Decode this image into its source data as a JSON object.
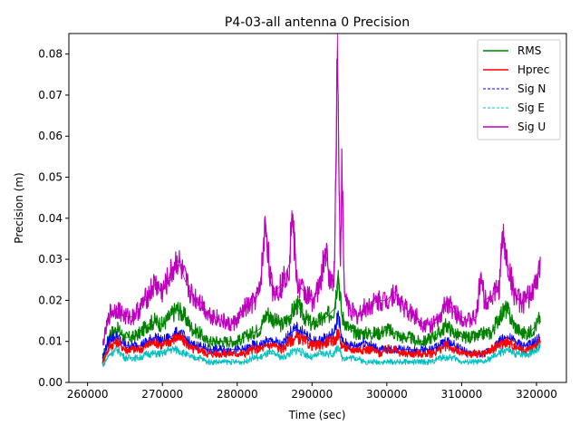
{
  "chart_data": {
    "type": "line",
    "title": "P4-03-all antenna 0 Precision",
    "xlabel": "Time (sec)",
    "ylabel": "Precision (m)",
    "xlim": [
      257500,
      324000
    ],
    "ylim": [
      0,
      0.085
    ],
    "xticks": [
      260000,
      270000,
      280000,
      290000,
      300000,
      310000,
      320000
    ],
    "xtick_labels": [
      "260000",
      "270000",
      "280000",
      "290000",
      "300000",
      "310000",
      "320000"
    ],
    "yticks": [
      0,
      0.01,
      0.02,
      0.03,
      0.04,
      0.05,
      0.06,
      0.07,
      0.08
    ],
    "ytick_labels": [
      "0.00",
      "0.01",
      "0.02",
      "0.03",
      "0.04",
      "0.05",
      "0.06",
      "0.07",
      "0.08"
    ],
    "grid": false,
    "legend_position": "top-right",
    "series": [
      {
        "name": "RMS",
        "color": "#008000",
        "style": "solid",
        "x": [
          262000,
          263000,
          264000,
          265000,
          266000,
          267000,
          268000,
          269000,
          270000,
          271000,
          272000,
          273000,
          274000,
          275000,
          276000,
          277000,
          278000,
          279000,
          280000,
          281000,
          282000,
          283000,
          284000,
          285000,
          286000,
          287000,
          288000,
          289000,
          290000,
          291000,
          292000,
          293000,
          293500,
          294000,
          295000,
          296000,
          297000,
          298000,
          299000,
          300000,
          301000,
          302000,
          303000,
          304000,
          305000,
          306000,
          307000,
          308000,
          309000,
          310000,
          311000,
          312000,
          313000,
          314000,
          315000,
          316000,
          317000,
          318000,
          319000,
          320000,
          320500
        ],
        "y": [
          0.006,
          0.012,
          0.013,
          0.011,
          0.011,
          0.012,
          0.014,
          0.015,
          0.014,
          0.016,
          0.018,
          0.016,
          0.013,
          0.012,
          0.01,
          0.01,
          0.01,
          0.01,
          0.01,
          0.011,
          0.012,
          0.013,
          0.017,
          0.015,
          0.014,
          0.016,
          0.019,
          0.016,
          0.014,
          0.015,
          0.016,
          0.018,
          0.027,
          0.016,
          0.013,
          0.012,
          0.012,
          0.012,
          0.012,
          0.013,
          0.012,
          0.011,
          0.011,
          0.01,
          0.01,
          0.011,
          0.012,
          0.014,
          0.012,
          0.011,
          0.011,
          0.011,
          0.012,
          0.012,
          0.016,
          0.018,
          0.014,
          0.012,
          0.012,
          0.014,
          0.016
        ]
      },
      {
        "name": "Hprec",
        "color": "#ff0000",
        "style": "solid",
        "x": [
          262000,
          263000,
          264000,
          265000,
          266000,
          267000,
          268000,
          269000,
          270000,
          271000,
          272000,
          273000,
          274000,
          275000,
          276000,
          277000,
          278000,
          279000,
          280000,
          281000,
          282000,
          283000,
          284000,
          285000,
          286000,
          287000,
          288000,
          289000,
          290000,
          291000,
          292000,
          293000,
          293500,
          294000,
          295000,
          296000,
          297000,
          298000,
          299000,
          300000,
          301000,
          302000,
          303000,
          304000,
          305000,
          306000,
          307000,
          308000,
          309000,
          310000,
          311000,
          312000,
          313000,
          314000,
          315000,
          316000,
          317000,
          318000,
          319000,
          320000,
          320500
        ],
        "y": [
          0.005,
          0.009,
          0.01,
          0.008,
          0.008,
          0.008,
          0.009,
          0.01,
          0.009,
          0.01,
          0.011,
          0.01,
          0.008,
          0.008,
          0.007,
          0.007,
          0.007,
          0.007,
          0.007,
          0.007,
          0.008,
          0.008,
          0.009,
          0.009,
          0.008,
          0.01,
          0.011,
          0.01,
          0.009,
          0.009,
          0.01,
          0.01,
          0.012,
          0.009,
          0.008,
          0.008,
          0.008,
          0.008,
          0.007,
          0.008,
          0.008,
          0.007,
          0.007,
          0.007,
          0.007,
          0.007,
          0.008,
          0.009,
          0.008,
          0.007,
          0.007,
          0.007,
          0.007,
          0.008,
          0.009,
          0.01,
          0.009,
          0.008,
          0.008,
          0.009,
          0.01
        ]
      },
      {
        "name": "Sig N",
        "color": "#0000ff",
        "style": "dashed",
        "x": [
          262000,
          263000,
          264000,
          265000,
          266000,
          267000,
          268000,
          269000,
          270000,
          271000,
          272000,
          273000,
          274000,
          275000,
          276000,
          277000,
          278000,
          279000,
          280000,
          281000,
          282000,
          283000,
          284000,
          285000,
          286000,
          287000,
          288000,
          289000,
          290000,
          291000,
          292000,
          293000,
          293500,
          294000,
          295000,
          296000,
          297000,
          298000,
          299000,
          300000,
          301000,
          302000,
          303000,
          304000,
          305000,
          306000,
          307000,
          308000,
          309000,
          310000,
          311000,
          312000,
          313000,
          314000,
          315000,
          316000,
          317000,
          318000,
          319000,
          320000,
          320500
        ],
        "y": [
          0.006,
          0.011,
          0.011,
          0.009,
          0.009,
          0.009,
          0.01,
          0.011,
          0.01,
          0.011,
          0.012,
          0.011,
          0.009,
          0.009,
          0.008,
          0.008,
          0.008,
          0.008,
          0.008,
          0.008,
          0.009,
          0.009,
          0.01,
          0.01,
          0.009,
          0.012,
          0.013,
          0.012,
          0.01,
          0.01,
          0.011,
          0.012,
          0.017,
          0.01,
          0.009,
          0.009,
          0.01,
          0.009,
          0.008,
          0.008,
          0.008,
          0.008,
          0.008,
          0.008,
          0.008,
          0.008,
          0.009,
          0.01,
          0.009,
          0.008,
          0.007,
          0.007,
          0.007,
          0.008,
          0.01,
          0.011,
          0.01,
          0.009,
          0.009,
          0.01,
          0.011
        ]
      },
      {
        "name": "Sig E",
        "color": "#00bfbf",
        "style": "dashed",
        "x": [
          262000,
          263000,
          264000,
          265000,
          266000,
          267000,
          268000,
          269000,
          270000,
          271000,
          272000,
          273000,
          274000,
          275000,
          276000,
          277000,
          278000,
          279000,
          280000,
          281000,
          282000,
          283000,
          284000,
          285000,
          286000,
          287000,
          288000,
          289000,
          290000,
          291000,
          292000,
          293000,
          293500,
          294000,
          295000,
          296000,
          297000,
          298000,
          299000,
          300000,
          301000,
          302000,
          303000,
          304000,
          305000,
          306000,
          307000,
          308000,
          309000,
          310000,
          311000,
          312000,
          313000,
          314000,
          315000,
          316000,
          317000,
          318000,
          319000,
          320000,
          320500
        ],
        "y": [
          0.004,
          0.007,
          0.008,
          0.006,
          0.006,
          0.006,
          0.007,
          0.007,
          0.007,
          0.008,
          0.008,
          0.007,
          0.006,
          0.006,
          0.005,
          0.005,
          0.005,
          0.005,
          0.005,
          0.005,
          0.006,
          0.006,
          0.007,
          0.007,
          0.006,
          0.007,
          0.008,
          0.007,
          0.006,
          0.007,
          0.007,
          0.007,
          0.009,
          0.006,
          0.006,
          0.006,
          0.005,
          0.005,
          0.005,
          0.005,
          0.005,
          0.005,
          0.005,
          0.005,
          0.005,
          0.005,
          0.006,
          0.006,
          0.006,
          0.005,
          0.005,
          0.005,
          0.005,
          0.006,
          0.007,
          0.008,
          0.007,
          0.007,
          0.007,
          0.008,
          0.009
        ]
      },
      {
        "name": "Sig U",
        "color": "#bf00bf",
        "style": "solid",
        "x": [
          262000,
          263000,
          264000,
          265000,
          266000,
          267000,
          268000,
          269000,
          270000,
          271000,
          272000,
          273000,
          274000,
          275000,
          276000,
          277000,
          278000,
          279000,
          280000,
          281000,
          282000,
          283000,
          283800,
          284500,
          285000,
          286000,
          287000,
          287300,
          288000,
          289000,
          290000,
          291000,
          291800,
          292500,
          293000,
          293400,
          293600,
          293800,
          294000,
          294300,
          295000,
          296000,
          297000,
          298000,
          299000,
          300000,
          301000,
          302000,
          303000,
          304000,
          305000,
          306000,
          307000,
          308000,
          309000,
          310000,
          311000,
          312000,
          312600,
          313000,
          314000,
          315000,
          315500,
          316000,
          317000,
          318000,
          319000,
          320000,
          320500
        ],
        "y": [
          0.009,
          0.017,
          0.018,
          0.016,
          0.016,
          0.018,
          0.021,
          0.024,
          0.022,
          0.026,
          0.03,
          0.025,
          0.021,
          0.02,
          0.017,
          0.016,
          0.015,
          0.014,
          0.015,
          0.018,
          0.019,
          0.022,
          0.039,
          0.024,
          0.022,
          0.024,
          0.029,
          0.042,
          0.024,
          0.022,
          0.02,
          0.023,
          0.032,
          0.024,
          0.027,
          0.085,
          0.048,
          0.03,
          0.053,
          0.022,
          0.018,
          0.016,
          0.018,
          0.019,
          0.02,
          0.02,
          0.022,
          0.019,
          0.017,
          0.016,
          0.014,
          0.014,
          0.015,
          0.02,
          0.017,
          0.016,
          0.015,
          0.016,
          0.027,
          0.02,
          0.021,
          0.023,
          0.036,
          0.03,
          0.022,
          0.019,
          0.021,
          0.024,
          0.028
        ]
      }
    ]
  }
}
